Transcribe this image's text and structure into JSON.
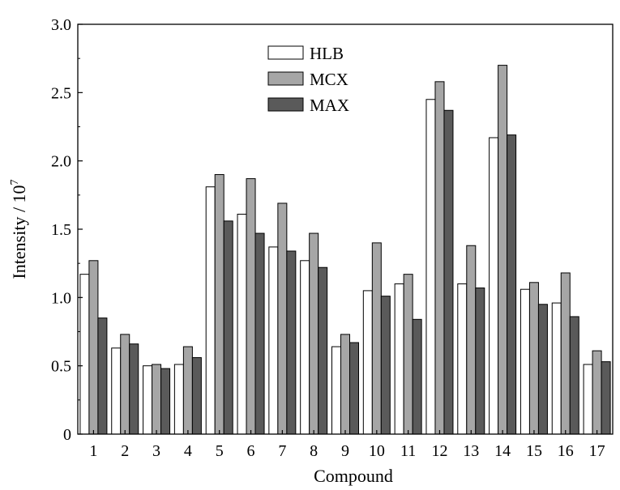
{
  "chart_data": {
    "type": "bar",
    "xlabel": "Compound",
    "ylabel": "Intensity / 10",
    "ylabel_sup": "7",
    "ylim": [
      0,
      3.0
    ],
    "yticks": [
      "0",
      "0.5",
      "1.0",
      "1.5",
      "2.0",
      "2.5",
      "3.0"
    ],
    "legend_position": "top-center",
    "categories": [
      "1",
      "2",
      "3",
      "4",
      "5",
      "6",
      "7",
      "8",
      "9",
      "10",
      "11",
      "12",
      "13",
      "14",
      "15",
      "16",
      "17"
    ],
    "series": [
      {
        "name": "HLB",
        "color": "#ffffff",
        "values": [
          1.17,
          0.63,
          0.5,
          0.51,
          1.81,
          1.61,
          1.37,
          1.27,
          0.64,
          1.05,
          1.1,
          2.45,
          1.1,
          2.17,
          1.06,
          0.96,
          0.51
        ]
      },
      {
        "name": "MCX",
        "color": "#a6a6a6",
        "values": [
          1.27,
          0.73,
          0.51,
          0.64,
          1.9,
          1.87,
          1.69,
          1.47,
          0.73,
          1.4,
          1.17,
          2.58,
          1.38,
          2.7,
          1.11,
          1.18,
          0.61
        ]
      },
      {
        "name": "MAX",
        "color": "#5a5a5a",
        "values": [
          0.85,
          0.66,
          0.48,
          0.56,
          1.56,
          1.47,
          1.34,
          1.22,
          0.67,
          1.01,
          0.84,
          2.37,
          1.07,
          2.19,
          0.95,
          0.86,
          0.53
        ]
      }
    ]
  }
}
